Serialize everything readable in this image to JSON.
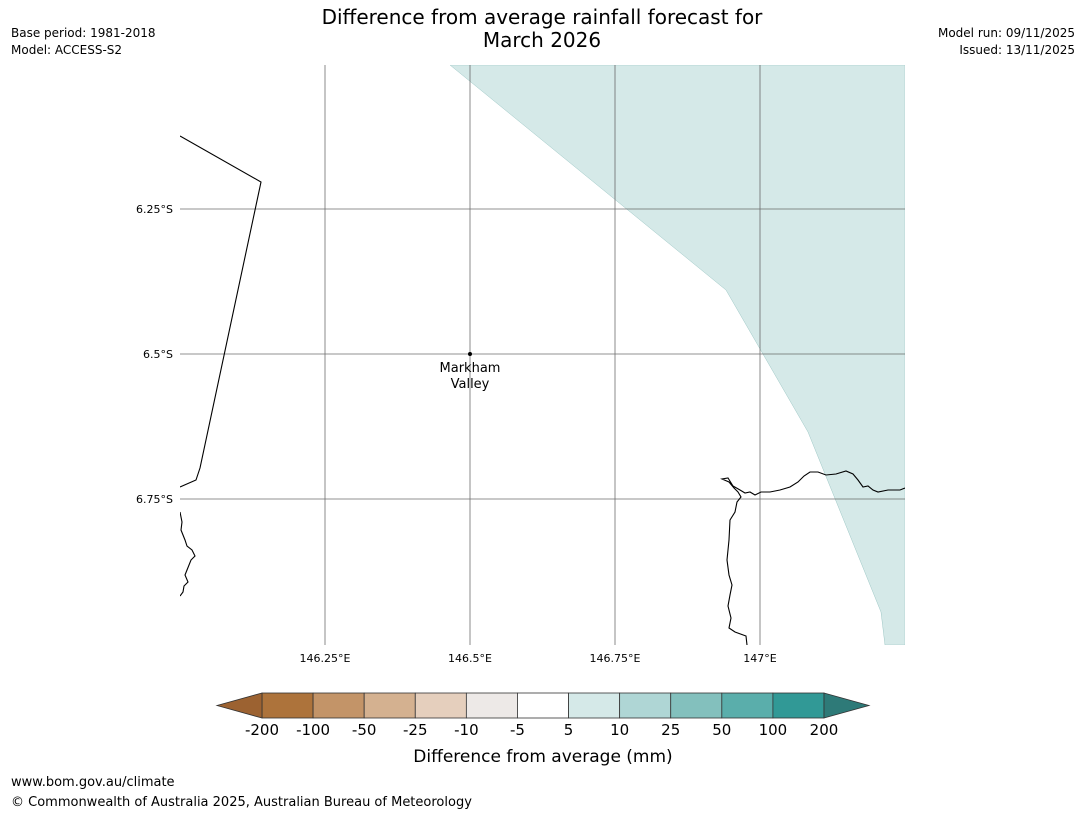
{
  "header": {
    "title_line1": "Difference from average rainfall forecast for",
    "title_line2": "March 2026",
    "base_period": "Base period: 1981-2018",
    "model": "Model: ACCESS-S2",
    "model_run": "Model run: 09/11/2025",
    "issued": "Issued: 13/11/2025"
  },
  "map": {
    "lat_labels": [
      "6.25°S",
      "6.5°S",
      "6.75°S"
    ],
    "lon_labels": [
      "146.25°E",
      "146.5°E",
      "146.75°E",
      "147°E"
    ],
    "place": {
      "name_line1": "Markham",
      "name_line2": "Valley"
    },
    "shaded_category_color": "#d5e9e8"
  },
  "legend": {
    "title": "Difference from average (mm)",
    "tick_labels": [
      "-200",
      "-100",
      "-50",
      "-25",
      "-10",
      "-5",
      "5",
      "10",
      "25",
      "50",
      "100",
      "200"
    ],
    "low_extend_color": "#9c6231",
    "high_extend_color": "#2e7a78",
    "bin_colors": [
      "#ad733b",
      "#c39468",
      "#d4b190",
      "#e5cfbd",
      "#ede9e7",
      "#ffffff",
      "#d5e9e8",
      "#afd6d5",
      "#83c0bd",
      "#5aaeab",
      "#319996"
    ]
  },
  "footer": {
    "url": "www.bom.gov.au/climate",
    "copyright": "© Commonwealth of Australia 2025, Australian Bureau of Meteorology"
  }
}
